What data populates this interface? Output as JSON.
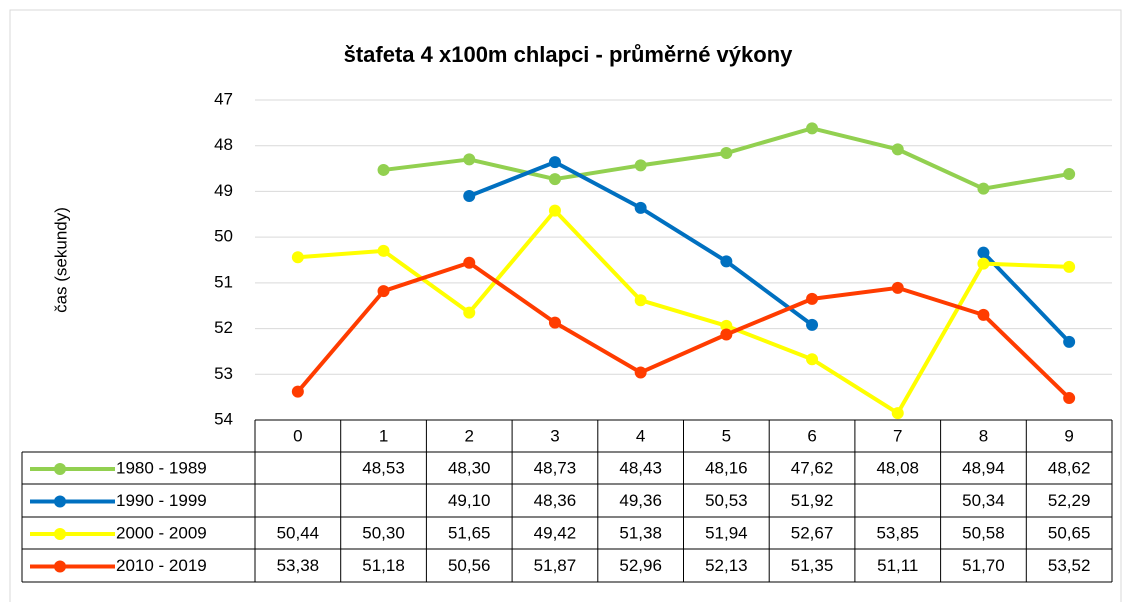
{
  "chart_data": {
    "type": "line",
    "title": "štafeta 4 x100m chlapci - průměrné výkony",
    "y_label": "čas (sekundy)",
    "categories": [
      "0",
      "1",
      "2",
      "3",
      "4",
      "5",
      "6",
      "7",
      "8",
      "9"
    ],
    "ylim": [
      47,
      54
    ],
    "yticks": [
      47,
      48,
      49,
      50,
      51,
      52,
      53,
      54
    ],
    "y_reversed": true,
    "grid": true,
    "data_table": true,
    "series": [
      {
        "name": "1980 - 1989",
        "color": "#92d050",
        "values": [
          null,
          48.53,
          48.3,
          48.73,
          48.43,
          48.16,
          47.62,
          48.08,
          48.94,
          48.62
        ],
        "value_labels": [
          null,
          "48,53",
          "48,30",
          "48,73",
          "48,43",
          "48,16",
          "47,62",
          "48,08",
          "48,94",
          "48,62"
        ]
      },
      {
        "name": "1990 - 1999",
        "color": "#0070c0",
        "values": [
          null,
          null,
          49.1,
          48.36,
          49.36,
          50.53,
          51.92,
          null,
          50.34,
          52.29
        ],
        "value_labels": [
          null,
          null,
          "49,10",
          "48,36",
          "49,36",
          "50,53",
          "51,92",
          null,
          "50,34",
          "52,29"
        ]
      },
      {
        "name": "2000 - 2009",
        "color": "#ffff00",
        "values": [
          50.44,
          50.3,
          51.65,
          49.42,
          51.38,
          51.94,
          52.67,
          53.85,
          50.58,
          50.65
        ],
        "value_labels": [
          "50,44",
          "50,30",
          "51,65",
          "49,42",
          "51,38",
          "51,94",
          "52,67",
          "53,85",
          "50,58",
          "50,65"
        ]
      },
      {
        "name": "2010 - 2019",
        "color": "#ff3c00",
        "values": [
          53.38,
          51.18,
          50.56,
          51.87,
          52.96,
          52.13,
          51.35,
          51.11,
          51.7,
          53.52
        ],
        "value_labels": [
          "53,38",
          "51,18",
          "50,56",
          "51,87",
          "52,96",
          "52,13",
          "51,35",
          "51,11",
          "51,70",
          "53,52"
        ]
      }
    ]
  }
}
